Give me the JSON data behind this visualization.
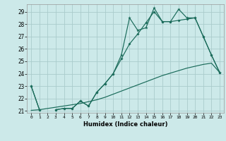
{
  "xlabel": "Humidex (Indice chaleur)",
  "x": [
    0,
    1,
    2,
    3,
    4,
    5,
    6,
    7,
    8,
    9,
    10,
    11,
    12,
    13,
    14,
    15,
    16,
    17,
    18,
    19,
    20,
    21,
    22,
    23
  ],
  "line_jagged": [
    23.0,
    21.1,
    null,
    21.1,
    21.2,
    21.2,
    21.8,
    21.4,
    22.5,
    23.2,
    24.0,
    25.5,
    28.5,
    27.5,
    27.7,
    29.3,
    28.2,
    28.2,
    29.2,
    28.5,
    28.5,
    27.0,
    25.5,
    24.1
  ],
  "line_mid": [
    23.0,
    21.1,
    null,
    21.1,
    21.2,
    21.2,
    21.8,
    21.4,
    22.5,
    23.2,
    24.0,
    25.2,
    26.4,
    27.2,
    28.1,
    29.0,
    28.2,
    28.2,
    28.3,
    28.4,
    28.5,
    27.0,
    25.5,
    24.1
  ],
  "line_linear": [
    21.05,
    21.1,
    21.2,
    21.3,
    21.4,
    21.5,
    21.6,
    21.75,
    21.9,
    22.1,
    22.35,
    22.6,
    22.85,
    23.1,
    23.35,
    23.6,
    23.85,
    24.05,
    24.25,
    24.45,
    24.6,
    24.75,
    24.85,
    24.1
  ],
  "bg_color": "#cce9e9",
  "grid_color": "#aacccc",
  "line_color": "#1a6b5a",
  "ylim_min": 20.85,
  "ylim_max": 29.6,
  "yticks": [
    21,
    22,
    23,
    24,
    25,
    26,
    27,
    28,
    29
  ],
  "xlim_min": -0.5,
  "xlim_max": 23.5
}
